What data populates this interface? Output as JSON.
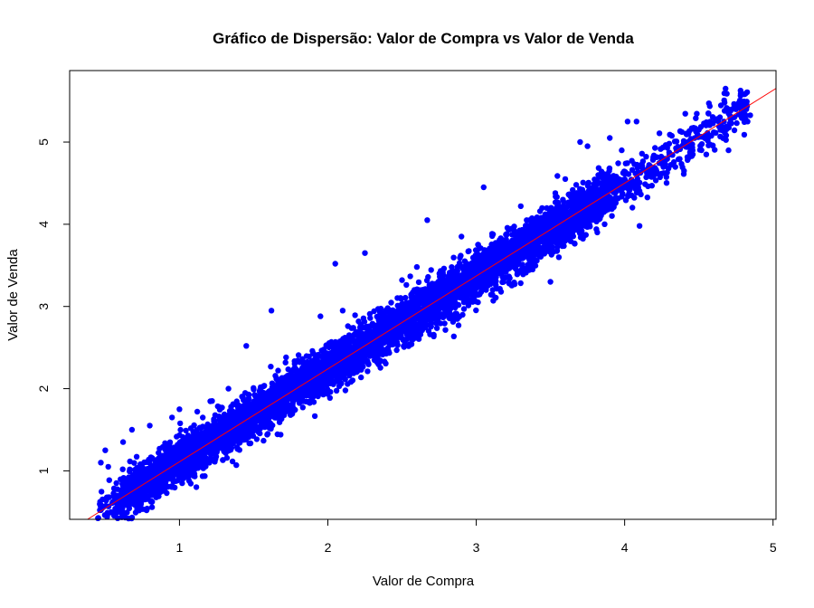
{
  "chart_data": {
    "type": "scatter",
    "title": "Gráfico de Dispersão: Valor de Compra vs Valor de Venda",
    "xlabel": "Valor de Compra",
    "ylabel": "Valor de Venda",
    "xlim": [
      0.26,
      5.02
    ],
    "ylim": [
      0.41,
      5.87
    ],
    "x_ticks": [
      "1",
      "2",
      "3",
      "4",
      "5"
    ],
    "y_ticks": [
      "1",
      "2",
      "3",
      "4",
      "5"
    ],
    "grid": false,
    "point_color": "#0000ff",
    "line_color": "#ff0000",
    "regression_line": {
      "intercept": -0.02,
      "slope": 1.13
    },
    "series": [
      {
        "point_cloud": {
          "x_range": [
            0.45,
            4.85
          ],
          "slope": 1.13,
          "intercept": -0.02,
          "spread_sd": 0.14,
          "count": 6000
        },
        "points": [
          [
            0.47,
            1.1
          ],
          [
            0.5,
            1.25
          ],
          [
            0.52,
            1.05
          ],
          [
            0.55,
            0.62
          ],
          [
            0.58,
            0.7
          ],
          [
            0.62,
            1.35
          ],
          [
            0.68,
            1.5
          ],
          [
            0.72,
            0.65
          ],
          [
            0.8,
            1.55
          ],
          [
            0.86,
            0.75
          ],
          [
            0.95,
            1.65
          ],
          [
            1.0,
            1.75
          ],
          [
            1.12,
            1.72
          ],
          [
            1.22,
            1.85
          ],
          [
            1.33,
            2.0
          ],
          [
            1.45,
            2.52
          ],
          [
            1.62,
            2.95
          ],
          [
            1.75,
            2.18
          ],
          [
            1.85,
            1.98
          ],
          [
            1.95,
            2.88
          ],
          [
            2.05,
            3.52
          ],
          [
            2.1,
            2.95
          ],
          [
            2.25,
            3.65
          ],
          [
            2.5,
            3.32
          ],
          [
            2.6,
            3.48
          ],
          [
            2.67,
            4.05
          ],
          [
            2.9,
            3.85
          ],
          [
            3.05,
            4.45
          ],
          [
            3.3,
            4.22
          ],
          [
            3.38,
            3.45
          ],
          [
            3.5,
            3.3
          ],
          [
            3.6,
            4.55
          ],
          [
            3.7,
            5.0
          ],
          [
            3.75,
            4.95
          ],
          [
            3.9,
            5.05
          ],
          [
            3.98,
            4.9
          ],
          [
            4.02,
            5.25
          ],
          [
            4.08,
            5.25
          ],
          [
            4.1,
            3.98
          ],
          [
            4.3,
            4.98
          ],
          [
            4.5,
            5.15
          ],
          [
            4.62,
            5.28
          ],
          [
            4.68,
            5.65
          ],
          [
            4.75,
            5.4
          ],
          [
            4.82,
            5.4
          ],
          [
            4.7,
            4.9
          ],
          [
            4.55,
            4.85
          ],
          [
            4.4,
            4.65
          ]
        ]
      }
    ]
  }
}
